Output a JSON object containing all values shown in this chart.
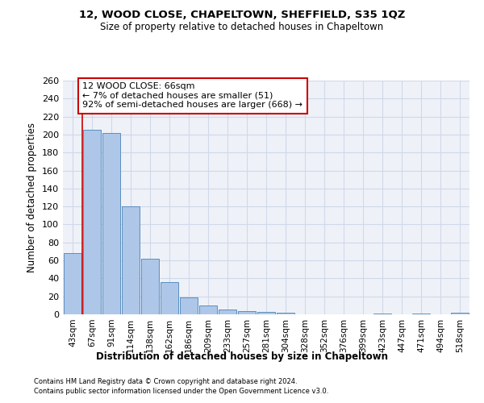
{
  "title_line1": "12, WOOD CLOSE, CHAPELTOWN, SHEFFIELD, S35 1QZ",
  "title_line2": "Size of property relative to detached houses in Chapeltown",
  "xlabel": "Distribution of detached houses by size in Chapeltown",
  "ylabel": "Number of detached properties",
  "bar_labels": [
    "43sqm",
    "67sqm",
    "91sqm",
    "114sqm",
    "138sqm",
    "162sqm",
    "186sqm",
    "209sqm",
    "233sqm",
    "257sqm",
    "281sqm",
    "304sqm",
    "328sqm",
    "352sqm",
    "376sqm",
    "399sqm",
    "423sqm",
    "447sqm",
    "471sqm",
    "494sqm",
    "518sqm"
  ],
  "bar_values": [
    68,
    205,
    202,
    120,
    62,
    36,
    19,
    10,
    5,
    4,
    3,
    2,
    0,
    0,
    0,
    0,
    1,
    0,
    1,
    0,
    2
  ],
  "bar_color": "#aec6e8",
  "bar_edge_color": "#5a8fc0",
  "annotation_text_line1": "12 WOOD CLOSE: 66sqm",
  "annotation_text_line2": "← 7% of detached houses are smaller (51)",
  "annotation_text_line3": "92% of semi-detached houses are larger (668) →",
  "annotation_box_color": "#ffffff",
  "annotation_box_edge": "#cc0000",
  "vertical_line_color": "#cc0000",
  "footnote1": "Contains HM Land Registry data © Crown copyright and database right 2024.",
  "footnote2": "Contains public sector information licensed under the Open Government Licence v3.0.",
  "ylim": [
    0,
    260
  ],
  "yticks": [
    0,
    20,
    40,
    60,
    80,
    100,
    120,
    140,
    160,
    180,
    200,
    220,
    240,
    260
  ],
  "grid_color": "#d0d8e8",
  "background_color": "#eef2f8"
}
